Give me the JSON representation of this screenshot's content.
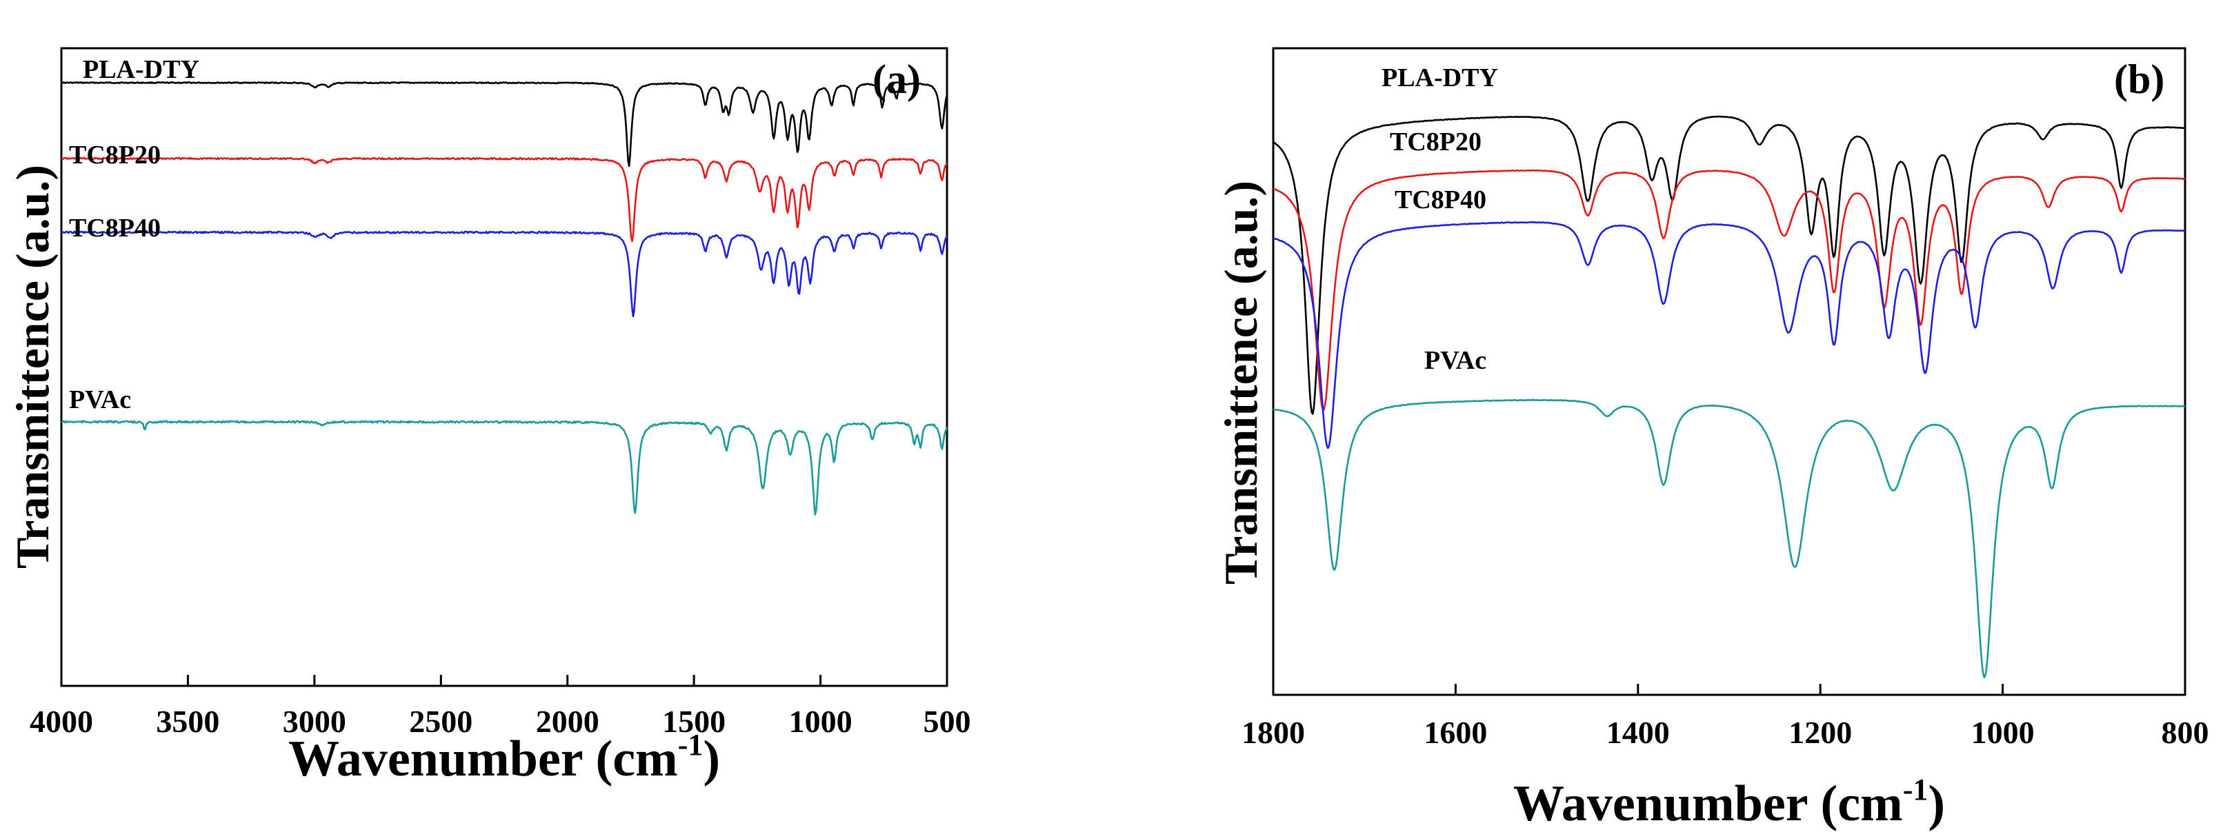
{
  "chart_data": [
    {
      "type": "line",
      "panel_tag": "(a)",
      "xlabel": "Wavenumber",
      "xlabel_unit": "(cm-1)",
      "xlabel_unit_open": "(cm",
      "xlabel_unit_exp": "-1",
      "xlabel_unit_close": ")",
      "ylabel": "Transmittence (a.u.)",
      "xlim": [
        4000,
        500
      ],
      "x_reversed": true,
      "xticks": [
        4000,
        3500,
        3000,
        2500,
        2000,
        1500,
        1000,
        500
      ],
      "yticks": [],
      "legend": "inline labels above each curve",
      "series": [
        {
          "name": "PLA-DTY",
          "color": "#000000",
          "baseline": 0.0,
          "features": [
            [
              2998,
              0.03,
              14
            ],
            [
              2945,
              0.025,
              14
            ],
            [
              1757,
              0.55,
              12
            ],
            [
              1455,
              0.14,
              10
            ],
            [
              1385,
              0.16,
              10
            ],
            [
              1362,
              0.18,
              10
            ],
            [
              1267,
              0.18,
              14
            ],
            [
              1185,
              0.34,
              12
            ],
            [
              1130,
              0.32,
              12
            ],
            [
              1090,
              0.4,
              12
            ],
            [
              1045,
              0.34,
              12
            ],
            [
              956,
              0.14,
              10
            ],
            [
              870,
              0.14,
              8
            ],
            [
              756,
              0.16,
              8
            ],
            [
              700,
              0.1,
              8
            ],
            [
              520,
              0.3,
              12
            ]
          ]
        },
        {
          "name": "TC8P20",
          "color": "#e31a1c",
          "baseline": 0.0,
          "features": [
            [
              2998,
              0.03,
              14
            ],
            [
              2945,
              0.025,
              14
            ],
            [
              1745,
              0.55,
              14
            ],
            [
              1455,
              0.12,
              10
            ],
            [
              1372,
              0.14,
              12
            ],
            [
              1240,
              0.2,
              16
            ],
            [
              1185,
              0.32,
              12
            ],
            [
              1130,
              0.3,
              12
            ],
            [
              1090,
              0.4,
              12
            ],
            [
              1045,
              0.3,
              12
            ],
            [
              945,
              0.1,
              10
            ],
            [
              870,
              0.1,
              8
            ],
            [
              760,
              0.12,
              8
            ],
            [
              605,
              0.1,
              8
            ],
            [
              520,
              0.14,
              10
            ]
          ]
        },
        {
          "name": "TC8P40",
          "color": "#1f1fe0",
          "baseline": 0.0,
          "features": [
            [
              2998,
              0.03,
              14
            ],
            [
              2935,
              0.04,
              14
            ],
            [
              1740,
              0.55,
              14
            ],
            [
              1455,
              0.12,
              10
            ],
            [
              1372,
              0.16,
              12
            ],
            [
              1235,
              0.22,
              16
            ],
            [
              1185,
              0.3,
              12
            ],
            [
              1125,
              0.3,
              12
            ],
            [
              1085,
              0.36,
              12
            ],
            [
              1040,
              0.3,
              12
            ],
            [
              945,
              0.12,
              10
            ],
            [
              870,
              0.1,
              8
            ],
            [
              760,
              0.1,
              8
            ],
            [
              605,
              0.12,
              8
            ],
            [
              520,
              0.14,
              10
            ]
          ]
        },
        {
          "name": "PVAc",
          "color": "#1a9a9a",
          "baseline": 0.0,
          "features": [
            [
              3670,
              0.05,
              5
            ],
            [
              2970,
              0.02,
              14
            ],
            [
              1733,
              0.55,
              14
            ],
            [
              1434,
              0.06,
              12
            ],
            [
              1372,
              0.16,
              12
            ],
            [
              1228,
              0.4,
              18
            ],
            [
              1120,
              0.18,
              14
            ],
            [
              1020,
              0.55,
              14
            ],
            [
              946,
              0.22,
              10
            ],
            [
              795,
              0.1,
              10
            ],
            [
              630,
              0.12,
              8
            ],
            [
              605,
              0.14,
              8
            ],
            [
              520,
              0.16,
              10
            ]
          ]
        }
      ]
    },
    {
      "type": "line",
      "panel_tag": "(b)",
      "xlabel": "Wavenumber",
      "xlabel_unit": "(cm-1)",
      "xlabel_unit_open": "(cm",
      "xlabel_unit_exp": "-1",
      "xlabel_unit_close": ")",
      "ylabel": "Transmittence (a.u.)",
      "xlim": [
        1800,
        800
      ],
      "x_reversed": true,
      "xticks": [
        1800,
        1600,
        1400,
        1200,
        1000,
        800
      ],
      "yticks": [],
      "legend": "inline labels above each curve",
      "series": [
        {
          "name": "PLA-DTY",
          "color": "#000000",
          "features": [
            [
              1757,
              1.0,
              10
            ],
            [
              1455,
              0.3,
              9
            ],
            [
              1385,
              0.2,
              8
            ],
            [
              1362,
              0.28,
              8
            ],
            [
              1267,
              0.1,
              10
            ],
            [
              1210,
              0.38,
              8
            ],
            [
              1185,
              0.45,
              7
            ],
            [
              1130,
              0.45,
              8
            ],
            [
              1090,
              0.55,
              9
            ],
            [
              1045,
              0.48,
              8
            ],
            [
              956,
              0.06,
              8
            ],
            [
              870,
              0.22,
              6
            ]
          ]
        },
        {
          "name": "TC8P20",
          "color": "#e31a1c",
          "features": [
            [
              1745,
              1.0,
              12
            ],
            [
              1455,
              0.2,
              9
            ],
            [
              1372,
              0.3,
              9
            ],
            [
              1240,
              0.28,
              14
            ],
            [
              1185,
              0.5,
              8
            ],
            [
              1130,
              0.55,
              9
            ],
            [
              1090,
              0.62,
              9
            ],
            [
              1045,
              0.5,
              8
            ],
            [
              950,
              0.14,
              8
            ],
            [
              870,
              0.15,
              6
            ]
          ]
        },
        {
          "name": "TC8P40",
          "color": "#1f1fe0",
          "features": [
            [
              1740,
              1.0,
              12
            ],
            [
              1455,
              0.2,
              9
            ],
            [
              1372,
              0.38,
              10
            ],
            [
              1235,
              0.5,
              14
            ],
            [
              1185,
              0.52,
              8
            ],
            [
              1125,
              0.48,
              9
            ],
            [
              1085,
              0.65,
              10
            ],
            [
              1030,
              0.45,
              9
            ],
            [
              945,
              0.28,
              9
            ],
            [
              870,
              0.2,
              6
            ]
          ]
        },
        {
          "name": "PVAc",
          "color": "#1a9a9a",
          "features": [
            [
              1733,
              0.55,
              11
            ],
            [
              1434,
              0.05,
              10
            ],
            [
              1372,
              0.28,
              10
            ],
            [
              1228,
              0.55,
              16
            ],
            [
              1120,
              0.28,
              18
            ],
            [
              1020,
              0.9,
              12
            ],
            [
              946,
              0.26,
              9
            ]
          ]
        }
      ]
    }
  ]
}
